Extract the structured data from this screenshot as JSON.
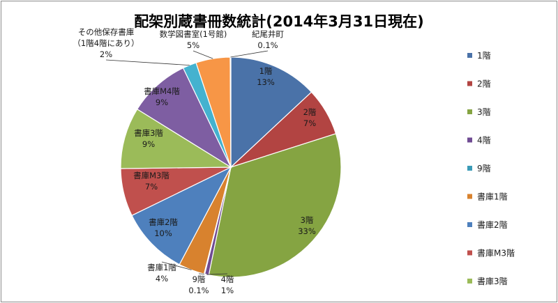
{
  "chart_data": {
    "type": "pie",
    "title": "配架別蔵書冊数統計(2014年3月31日現在)",
    "slices": [
      {
        "name": "1階",
        "label_lines": [
          "1階",
          "13%"
        ],
        "value": 13,
        "color": "#4a72a8"
      },
      {
        "name": "2階",
        "label_lines": [
          "2階",
          "7%"
        ],
        "value": 7,
        "color": "#b24442"
      },
      {
        "name": "3階",
        "label_lines": [
          "3階",
          "33%"
        ],
        "value": 33,
        "color": "#85a442"
      },
      {
        "name": "4階",
        "label_lines": [
          "4階",
          "1%"
        ],
        "value": 0.6,
        "color": "#6f4b93"
      },
      {
        "name": "9階",
        "label_lines": [
          "9階",
          "0.1%"
        ],
        "value": 0.1,
        "color": "#3a9bb7"
      },
      {
        "name": "書庫1階",
        "label_lines": [
          "書庫1階",
          "4%"
        ],
        "value": 3.8,
        "color": "#d8822e"
      },
      {
        "name": "書庫2階",
        "label_lines": [
          "書庫2階",
          "10%"
        ],
        "value": 10,
        "color": "#4e80bd"
      },
      {
        "name": "書庫M3階",
        "label_lines": [
          "書庫M3階",
          "7%"
        ],
        "value": 7,
        "color": "#c0504d"
      },
      {
        "name": "書庫3階",
        "label_lines": [
          "書庫3階",
          "9%"
        ],
        "value": 9,
        "color": "#9bbb59"
      },
      {
        "name": "書庫M4階",
        "label_lines": [
          "書庫M4階",
          "9%"
        ],
        "value": 9,
        "color": "#7e5ea2"
      },
      {
        "name": "その他保存書庫（1階4階にあり）",
        "label_lines": [
          "その他保存書庫",
          "（1階4階にあり）",
          "2%"
        ],
        "value": 2,
        "color": "#44b2cf"
      },
      {
        "name": "数学図書室(1号館)",
        "label_lines": [
          "数学図書室(1号館)",
          "5%"
        ],
        "value": 5,
        "color": "#f79646"
      },
      {
        "name": "紀尾井町",
        "label_lines": [
          "紀尾井町",
          "0.1%"
        ],
        "value": 0.1,
        "color": "#2c4d75"
      }
    ],
    "legend": {
      "placement": "right",
      "visible_entries": [
        "1階",
        "2階",
        "3階",
        "4階",
        "9階",
        "書庫1階",
        "書庫2階",
        "書庫M3階",
        "書庫3階"
      ]
    },
    "start_angle": "12 o'clock",
    "direction": "clockwise"
  }
}
